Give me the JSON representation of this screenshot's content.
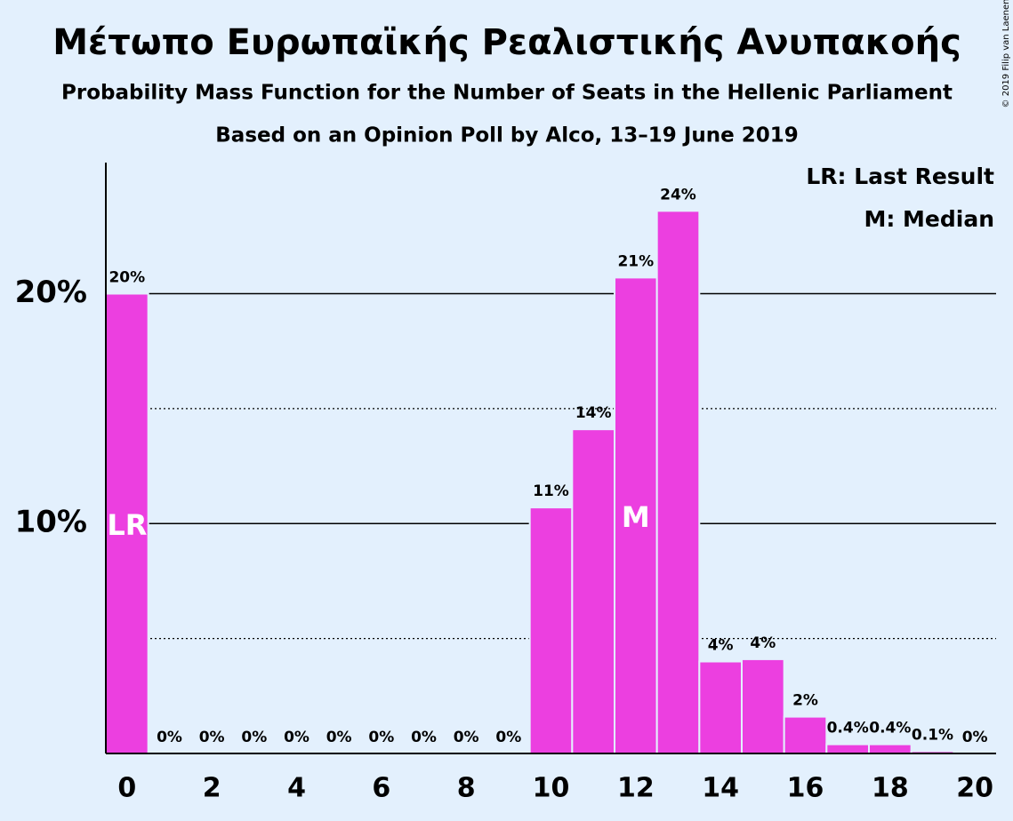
{
  "chart_data": {
    "type": "bar",
    "title": "Μέτωπο Ευρωπαϊκής Ρεαλιστικής Ανυπακοής",
    "subtitle": "Probability Mass Function for the Number of Seats in the Hellenic Parliament",
    "subtitle2": "Based on an Opinion Poll by Alco, 13–19 June 2019",
    "copyright": "© 2019 Filip van Laenen",
    "x": [
      0,
      1,
      2,
      3,
      4,
      5,
      6,
      7,
      8,
      9,
      10,
      11,
      12,
      13,
      14,
      15,
      16,
      17,
      18,
      19,
      20
    ],
    "values": [
      20.0,
      0,
      0,
      0,
      0,
      0,
      0,
      0,
      0,
      0,
      10.7,
      14.1,
      20.7,
      23.6,
      4.0,
      4.1,
      1.6,
      0.4,
      0.4,
      0.1,
      0
    ],
    "value_labels": [
      "20%",
      "0%",
      "0%",
      "0%",
      "0%",
      "0%",
      "0%",
      "0%",
      "0%",
      "0%",
      "11%",
      "14%",
      "21%",
      "24%",
      "4%",
      "4%",
      "2%",
      "0.4%",
      "0.4%",
      "0.1%",
      "0%"
    ],
    "color": "#ec3fe0",
    "xlim": [
      -0.5,
      20.5
    ],
    "xticks": [
      0,
      2,
      4,
      6,
      8,
      10,
      12,
      14,
      16,
      18,
      20
    ],
    "ylim": [
      0,
      25.7
    ],
    "yticks": [
      {
        "value": 10,
        "label": "10%"
      },
      {
        "value": 20,
        "label": "20%"
      }
    ],
    "minor_yticks": [
      5,
      15
    ],
    "grid": true,
    "annotations": [
      {
        "text": "LR",
        "x": 0
      },
      {
        "text": "M",
        "x": 12
      }
    ],
    "legend": [
      "LR: Last Result",
      "M: Median"
    ]
  }
}
